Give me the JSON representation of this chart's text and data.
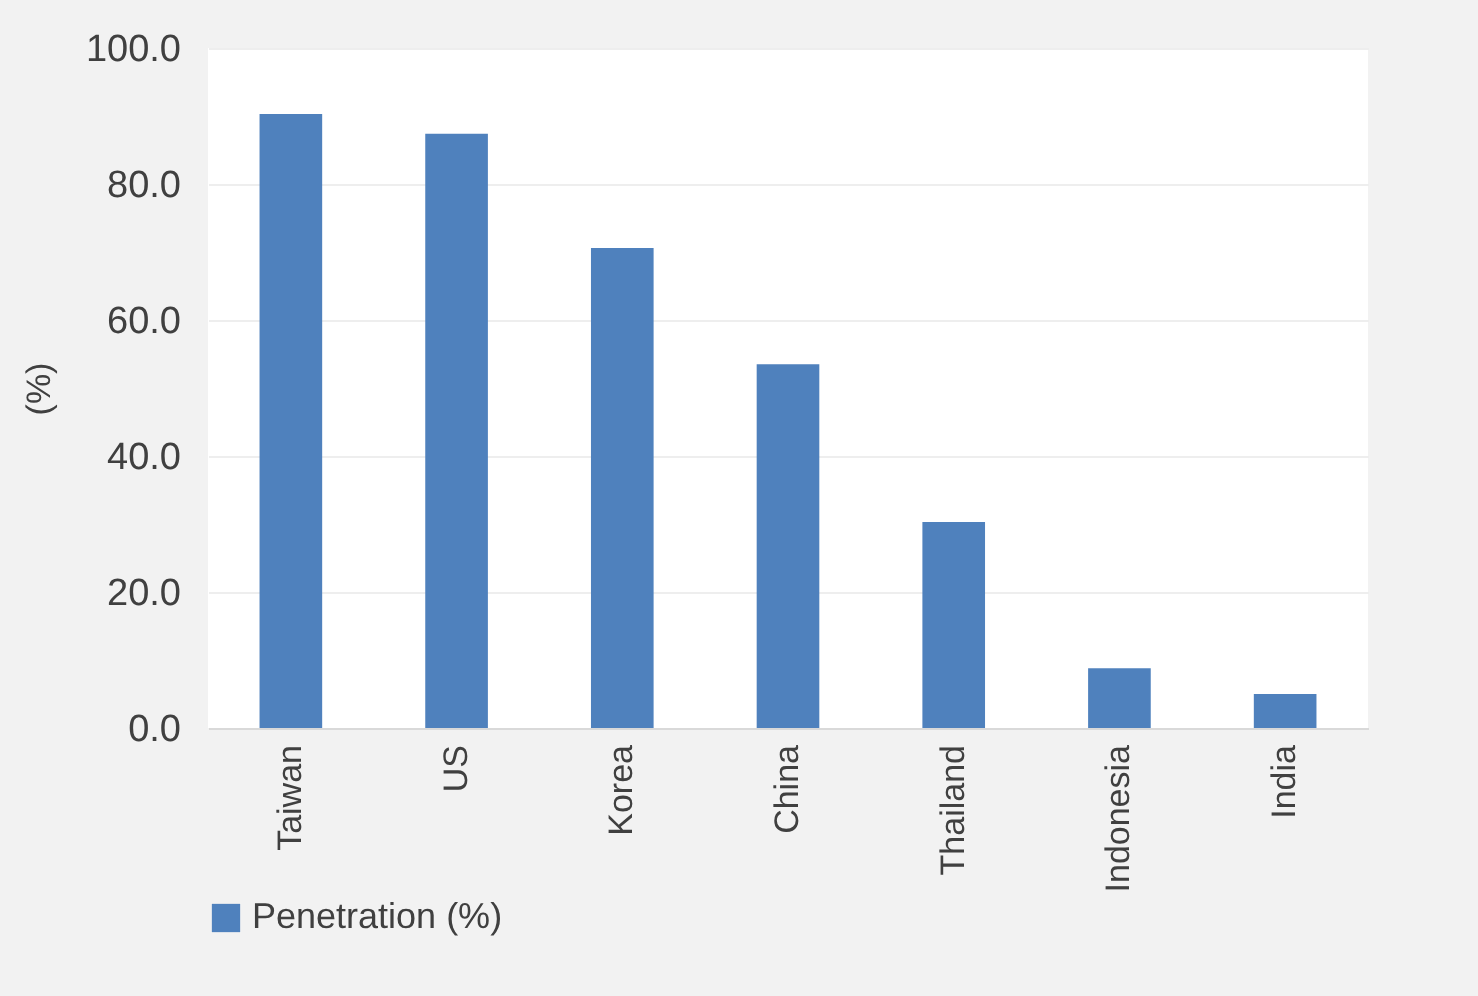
{
  "chart_data": {
    "type": "bar",
    "ylabel": "(%)",
    "categories": [
      "Taiwan",
      "US",
      "Korea",
      "China",
      "Thailand",
      "Indonesia",
      "India"
    ],
    "series": [
      {
        "name": "Penetration (%)",
        "color": "#4f81bd",
        "values": [
          90.3,
          87.4,
          70.6,
          53.5,
          30.3,
          8.8,
          5.0
        ]
      }
    ],
    "ylim": [
      0,
      100
    ],
    "yticks": [
      {
        "value": 0,
        "label": "0.0"
      },
      {
        "value": 20,
        "label": "20.0"
      },
      {
        "value": 40,
        "label": "40.0"
      },
      {
        "value": 60,
        "label": "60.0"
      },
      {
        "value": 80,
        "label": "80.0"
      },
      {
        "value": 100,
        "label": "100.0"
      }
    ],
    "grid": "y",
    "legend": "bottom"
  }
}
